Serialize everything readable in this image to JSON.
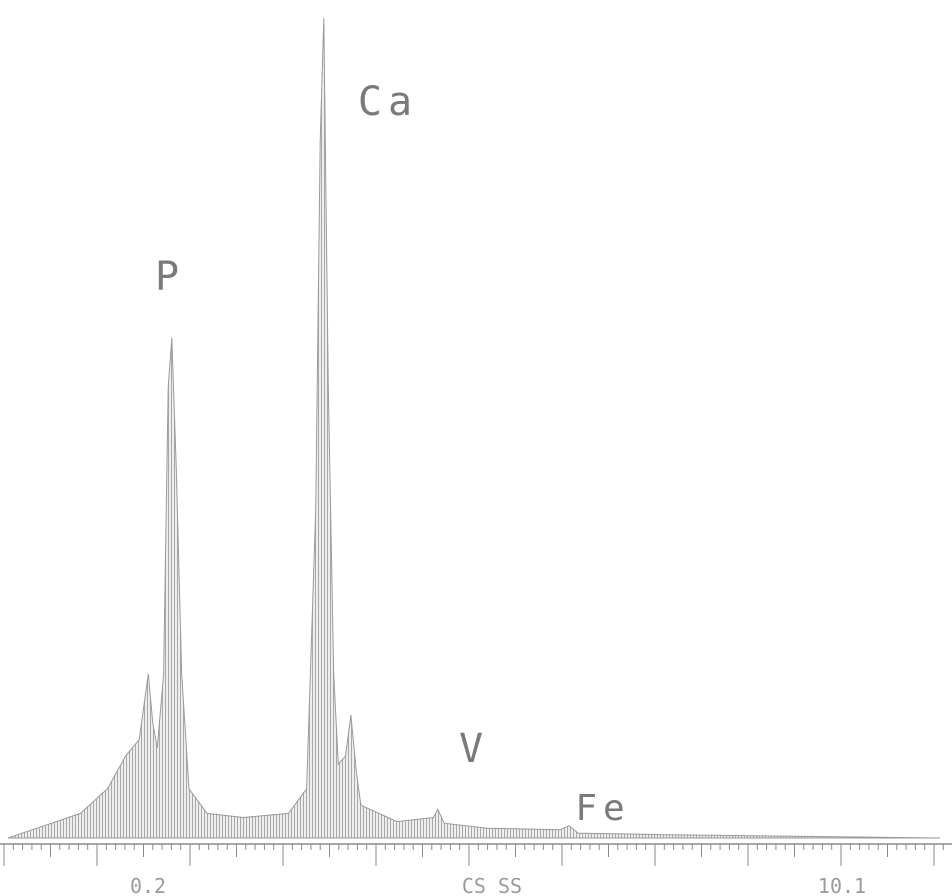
{
  "chart_data": {
    "type": "area",
    "title": "",
    "xlabel": "",
    "ylabel": "",
    "x_tick_labels": [
      "0.2",
      "CS SS",
      "10.1"
    ],
    "annotations": [
      {
        "label": "P",
        "x": 2.01
      },
      {
        "label": "Ca",
        "x": 3.69
      },
      {
        "label": "V",
        "x": 4.95
      },
      {
        "label": "Fe",
        "x": 6.4
      }
    ],
    "xlim": [
      0.2,
      10.5
    ],
    "ylim": [
      0,
      1
    ],
    "series": [
      {
        "values": [
          [
            0.2,
            0.0
          ],
          [
            0.6,
            0.015
          ],
          [
            1.0,
            0.03
          ],
          [
            1.3,
            0.06
          ],
          [
            1.5,
            0.1
          ],
          [
            1.65,
            0.12
          ],
          [
            1.75,
            0.2
          ],
          [
            1.8,
            0.14
          ],
          [
            1.85,
            0.11
          ],
          [
            1.92,
            0.2
          ],
          [
            1.97,
            0.55
          ],
          [
            2.01,
            0.61
          ],
          [
            2.06,
            0.45
          ],
          [
            2.12,
            0.2
          ],
          [
            2.2,
            0.06
          ],
          [
            2.4,
            0.03
          ],
          [
            2.8,
            0.025
          ],
          [
            3.3,
            0.03
          ],
          [
            3.5,
            0.06
          ],
          [
            3.6,
            0.4
          ],
          [
            3.65,
            0.85
          ],
          [
            3.69,
            1.0
          ],
          [
            3.74,
            0.55
          ],
          [
            3.8,
            0.2
          ],
          [
            3.85,
            0.09
          ],
          [
            3.93,
            0.1
          ],
          [
            3.99,
            0.15
          ],
          [
            4.05,
            0.08
          ],
          [
            4.1,
            0.04
          ],
          [
            4.5,
            0.02
          ],
          [
            4.9,
            0.025
          ],
          [
            4.95,
            0.035
          ],
          [
            5.02,
            0.018
          ],
          [
            5.5,
            0.012
          ],
          [
            6.3,
            0.01
          ],
          [
            6.4,
            0.015
          ],
          [
            6.5,
            0.006
          ],
          [
            7.5,
            0.004
          ],
          [
            10.5,
            0.0
          ]
        ]
      }
    ],
    "grid": false,
    "colors": {
      "fill": "#b8b8b8",
      "line": "#9a9a9a",
      "axis": "#8a8a8a",
      "label": "#7a7a7a"
    }
  }
}
